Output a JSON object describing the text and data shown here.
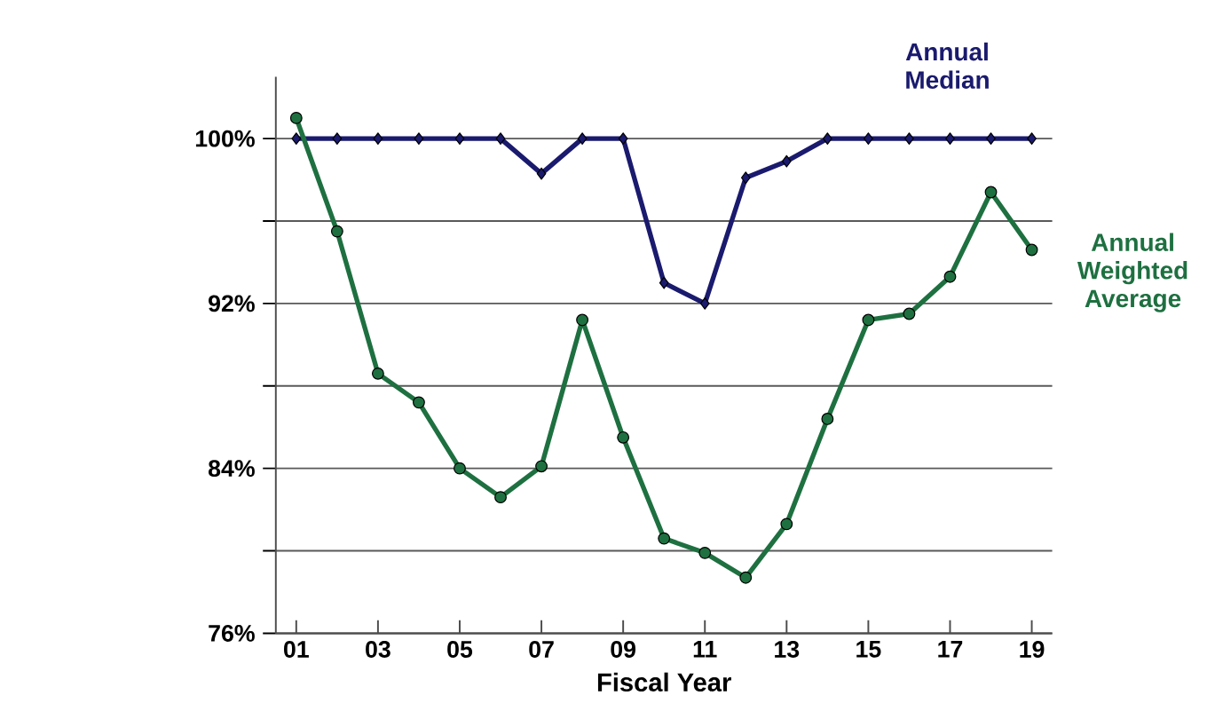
{
  "chart_data": {
    "type": "line",
    "xlabel": "Fiscal Year",
    "x": [
      1,
      2,
      3,
      4,
      5,
      6,
      7,
      8,
      9,
      10,
      11,
      12,
      13,
      14,
      15,
      16,
      17,
      18,
      19
    ],
    "xlim": [
      0.5,
      19.5
    ],
    "xticks": [
      {
        "value": 1,
        "label": "01"
      },
      {
        "value": 3,
        "label": "03"
      },
      {
        "value": 5,
        "label": "05"
      },
      {
        "value": 7,
        "label": "07"
      },
      {
        "value": 9,
        "label": "09"
      },
      {
        "value": 11,
        "label": "11"
      },
      {
        "value": 13,
        "label": "13"
      },
      {
        "value": 15,
        "label": "15"
      },
      {
        "value": 17,
        "label": "17"
      },
      {
        "value": 19,
        "label": "19"
      }
    ],
    "ylim": [
      76,
      103
    ],
    "yticks": [
      {
        "value": 76,
        "label": "76%"
      },
      {
        "value": 80,
        "label": null
      },
      {
        "value": 84,
        "label": "84%"
      },
      {
        "value": 88,
        "label": null
      },
      {
        "value": 92,
        "label": "92%"
      },
      {
        "value": 96,
        "label": null
      },
      {
        "value": 100,
        "label": "100%"
      }
    ],
    "grid": "y",
    "legend": false,
    "series": [
      {
        "name": "Annual Median",
        "color": "#1a1a6e",
        "marker": "diamond",
        "values": [
          100,
          100,
          100,
          100,
          100,
          100,
          98.3,
          100,
          100,
          93.0,
          92.0,
          98.1,
          98.9,
          100,
          100,
          100,
          100,
          100,
          100
        ]
      },
      {
        "name": "Annual Weighted Average",
        "color": "#1e7040",
        "marker": "circle",
        "values": [
          101.0,
          95.5,
          88.6,
          87.2,
          84.0,
          82.6,
          84.1,
          91.2,
          85.5,
          80.6,
          79.9,
          78.7,
          81.3,
          86.4,
          91.2,
          91.5,
          93.3,
          97.4,
          94.6
        ]
      }
    ]
  }
}
